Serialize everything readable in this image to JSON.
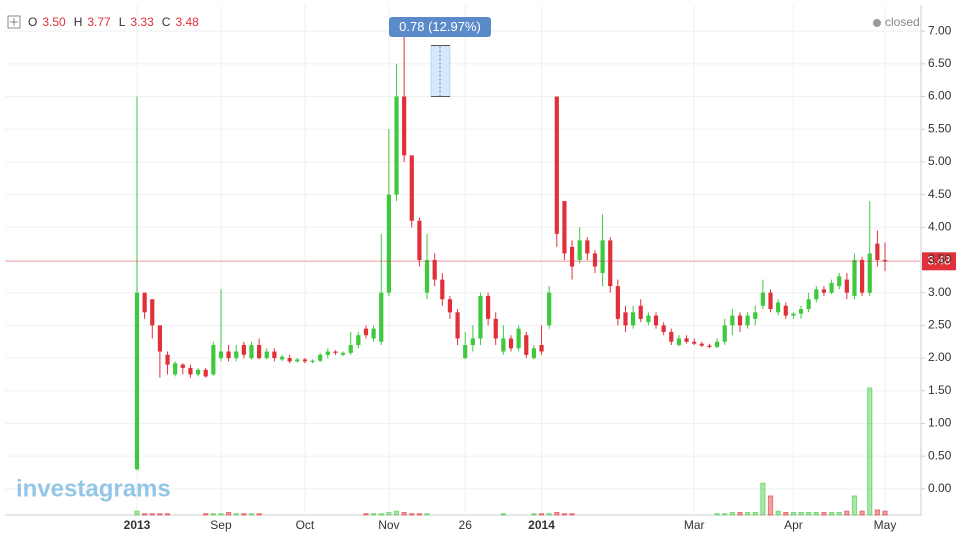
{
  "chart_data": {
    "type": "candlestick",
    "legend_ohlc": [
      {
        "key": "O",
        "value": 3.5,
        "label": "3.50"
      },
      {
        "key": "H",
        "value": 3.77,
        "label": "3.77"
      },
      {
        "key": "L",
        "value": 3.33,
        "label": "3.33"
      },
      {
        "key": "C",
        "value": 3.48,
        "label": "3.48"
      }
    ],
    "status": "closed",
    "watermark": "investagrams",
    "measure": {
      "label": "0.78 (12.97%)",
      "from": 6.0,
      "to": 6.78
    },
    "last_price": {
      "value": 3.48,
      "label": "3.48"
    },
    "categories": [
      "2013",
      null,
      null,
      null,
      null,
      null,
      null,
      null,
      null,
      null,
      null,
      "Sep",
      null,
      null,
      null,
      null,
      null,
      null,
      null,
      null,
      null,
      null,
      "Oct",
      null,
      null,
      null,
      null,
      null,
      null,
      null,
      null,
      null,
      null,
      "Nov",
      null,
      null,
      null,
      null,
      null,
      null,
      null,
      null,
      null,
      "26",
      null,
      null,
      null,
      null,
      null,
      null,
      null,
      null,
      null,
      "2014",
      null,
      null,
      null,
      null,
      null,
      null,
      null,
      null,
      null,
      null,
      null,
      null,
      null,
      null,
      null,
      null,
      null,
      null,
      null,
      "Mar",
      null,
      null,
      null,
      null,
      null,
      null,
      null,
      null,
      null,
      null,
      null,
      null,
      "Apr",
      null,
      null,
      null,
      null,
      null,
      null,
      null,
      null,
      null,
      null,
      null,
      "May"
    ],
    "open": [
      0.3,
      3.0,
      2.9,
      2.5,
      2.05,
      1.75,
      1.9,
      1.85,
      1.75,
      1.82,
      1.75,
      2.0,
      2.1,
      2.0,
      2.2,
      2.0,
      2.2,
      2.0,
      2.1,
      1.98,
      2.0,
      1.95,
      1.98,
      1.94,
      1.96,
      2.05,
      2.1,
      2.05,
      2.08,
      2.2,
      2.45,
      2.3,
      2.25,
      3.0,
      4.5,
      6.0,
      5.1,
      4.1,
      3.0,
      3.5,
      3.2,
      2.9,
      2.7,
      2.0,
      2.2,
      2.3,
      2.95,
      2.6,
      2.1,
      2.3,
      2.15,
      2.35,
      2.0,
      2.2,
      2.5,
      6.0,
      4.4,
      3.7,
      3.5,
      3.8,
      3.6,
      3.3,
      3.8,
      3.1,
      2.7,
      2.5,
      2.8,
      2.55,
      2.65,
      2.5,
      2.4,
      2.2,
      2.3,
      2.25,
      2.22,
      2.19,
      2.17,
      2.25,
      2.5,
      2.65,
      2.5,
      2.6,
      2.8,
      3.0,
      2.7,
      2.8,
      2.65,
      2.68,
      2.75,
      2.9,
      3.05,
      3.0,
      3.1,
      3.2,
      2.95,
      3.5,
      3.0,
      3.75,
      3.5
    ],
    "high": [
      6.0,
      3.0,
      2.9,
      2.5,
      2.1,
      1.95,
      1.92,
      1.9,
      1.85,
      1.85,
      2.25,
      3.05,
      2.2,
      2.2,
      2.25,
      2.25,
      2.3,
      2.15,
      2.15,
      2.05,
      2.05,
      2.0,
      2.0,
      1.98,
      2.08,
      2.15,
      2.12,
      2.1,
      2.4,
      2.4,
      2.5,
      2.5,
      3.9,
      5.5,
      6.5,
      7.0,
      5.1,
      4.15,
      3.9,
      3.6,
      3.3,
      2.95,
      2.75,
      2.4,
      2.5,
      3.0,
      3.0,
      2.7,
      2.5,
      2.35,
      2.5,
      2.4,
      2.2,
      2.5,
      3.1,
      6.0,
      4.4,
      3.8,
      4.0,
      3.85,
      3.65,
      4.2,
      3.85,
      3.2,
      2.8,
      2.8,
      2.9,
      2.7,
      2.7,
      2.55,
      2.45,
      2.35,
      2.35,
      2.3,
      2.25,
      2.22,
      2.3,
      2.6,
      2.75,
      2.7,
      2.7,
      2.8,
      3.2,
      3.05,
      2.9,
      2.85,
      2.7,
      2.8,
      3.0,
      3.1,
      3.1,
      3.2,
      3.3,
      3.3,
      3.6,
      3.55,
      4.4,
      3.95,
      3.77
    ],
    "low": [
      0.28,
      2.6,
      2.3,
      1.7,
      1.75,
      1.72,
      1.75,
      1.7,
      1.72,
      1.7,
      1.73,
      1.95,
      1.95,
      1.95,
      2.0,
      1.98,
      1.98,
      1.98,
      1.95,
      1.95,
      1.92,
      1.93,
      1.92,
      1.92,
      1.94,
      2.0,
      2.05,
      2.03,
      2.05,
      2.15,
      2.3,
      2.25,
      2.2,
      2.95,
      4.4,
      5.0,
      4.0,
      3.4,
      2.9,
      3.1,
      2.8,
      2.6,
      2.2,
      1.98,
      2.1,
      2.2,
      2.5,
      2.2,
      2.05,
      2.1,
      2.1,
      2.0,
      1.98,
      2.05,
      2.45,
      3.7,
      3.5,
      3.2,
      3.45,
      3.5,
      3.3,
      3.1,
      3.0,
      2.5,
      2.4,
      2.45,
      2.55,
      2.5,
      2.45,
      2.35,
      2.2,
      2.18,
      2.22,
      2.2,
      2.17,
      2.15,
      2.15,
      2.2,
      2.35,
      2.4,
      2.45,
      2.5,
      2.75,
      2.7,
      2.65,
      2.6,
      2.6,
      2.6,
      2.7,
      2.85,
      2.95,
      2.98,
      3.05,
      2.9,
      2.9,
      2.95,
      2.95,
      3.4,
      3.33
    ],
    "close": [
      3.0,
      2.7,
      2.5,
      2.1,
      1.9,
      1.92,
      1.85,
      1.75,
      1.82,
      1.72,
      2.2,
      2.1,
      2.0,
      2.1,
      2.05,
      2.2,
      2.0,
      2.1,
      2.0,
      2.02,
      1.95,
      1.98,
      1.95,
      1.96,
      2.05,
      2.1,
      2.08,
      2.08,
      2.2,
      2.35,
      2.35,
      2.45,
      3.0,
      4.5,
      6.0,
      5.1,
      4.1,
      3.5,
      3.5,
      3.2,
      2.9,
      2.7,
      2.3,
      2.2,
      2.3,
      2.95,
      2.6,
      2.3,
      2.3,
      2.15,
      2.45,
      2.05,
      2.15,
      2.1,
      3.0,
      3.9,
      3.6,
      3.4,
      3.8,
      3.6,
      3.4,
      3.8,
      3.1,
      2.6,
      2.5,
      2.7,
      2.6,
      2.65,
      2.5,
      2.4,
      2.25,
      2.3,
      2.25,
      2.22,
      2.19,
      2.17,
      2.25,
      2.5,
      2.65,
      2.5,
      2.65,
      2.7,
      3.0,
      2.75,
      2.85,
      2.65,
      2.68,
      2.75,
      2.9,
      3.05,
      3.0,
      3.15,
      3.25,
      3.0,
      3.5,
      3.0,
      3.6,
      3.5,
      3.48
    ],
    "volume": [
      3,
      1,
      1,
      1,
      1,
      0,
      0,
      0,
      0,
      1,
      1,
      1,
      2,
      1,
      1,
      1,
      1,
      0,
      0,
      0,
      0,
      0,
      0,
      0,
      0,
      0,
      0,
      0,
      0,
      0,
      1,
      1,
      1,
      2,
      3,
      2,
      1,
      1,
      1,
      0,
      0,
      0,
      0,
      0,
      0,
      0,
      0,
      0,
      1,
      0,
      0,
      0,
      1,
      1,
      1,
      2,
      1,
      1,
      0,
      0,
      0,
      0,
      0,
      0,
      0,
      0,
      0,
      0,
      0,
      0,
      0,
      0,
      0,
      0,
      0,
      0,
      1,
      1,
      2,
      2,
      2,
      2,
      25,
      15,
      3,
      2,
      2,
      2,
      2,
      2,
      2,
      2,
      2,
      3,
      15,
      3,
      100,
      4,
      3
    ],
    "vlim": [
      0,
      100
    ],
    "up_color": "#3ec93e",
    "down_color": "#e0303a",
    "ylim": [
      -0.4,
      7.4
    ],
    "yticks": [
      {
        "value": 0,
        "label": "0.00"
      },
      {
        "value": 0.5,
        "label": "0.50"
      },
      {
        "value": 1,
        "label": "1.00"
      },
      {
        "value": 1.5,
        "label": "1.50"
      },
      {
        "value": 2,
        "label": "2.00"
      },
      {
        "value": 2.5,
        "label": "2.50"
      },
      {
        "value": 3,
        "label": "3.00"
      },
      {
        "value": 3.5,
        "label": "3.50"
      },
      {
        "value": 4,
        "label": "4.00"
      },
      {
        "value": 4.5,
        "label": "4.50"
      },
      {
        "value": 5,
        "label": "5.00"
      },
      {
        "value": 5.5,
        "label": "5.50"
      },
      {
        "value": 6,
        "label": "6.00"
      },
      {
        "value": 6.5,
        "label": "6.50"
      },
      {
        "value": 7,
        "label": "7.00"
      }
    ],
    "grid": true
  }
}
